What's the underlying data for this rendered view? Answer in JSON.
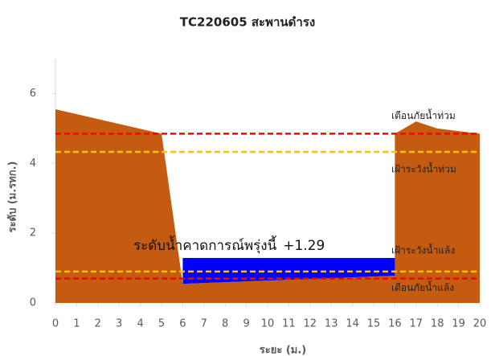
{
  "chart_data": {
    "type": "area",
    "title": "TC220605 สะพานดำรง",
    "xlabel": "ระยะ (ม.)",
    "ylabel": "ระดับ (ม.รทก.)",
    "xlim": [
      0,
      20
    ],
    "ylim": [
      0,
      7
    ],
    "xticks": [
      0,
      1,
      2,
      3,
      4,
      5,
      6,
      7,
      8,
      9,
      10,
      11,
      12,
      13,
      14,
      15,
      16,
      17,
      18,
      19,
      20
    ],
    "yticks": [
      0,
      2,
      4,
      6
    ],
    "ground": {
      "color": "#c55a11",
      "x": [
        0,
        5,
        6,
        16,
        16,
        17,
        18,
        20
      ],
      "values": [
        5.55,
        4.85,
        0.55,
        0.78,
        4.85,
        5.2,
        5.0,
        4.85
      ]
    },
    "water": {
      "label": "ระดับน้ำคาดการณ์พรุ่งนี้",
      "color": "#0000ff",
      "x": [
        6,
        16
      ],
      "value": 1.29,
      "value_label": "+1.29"
    },
    "thresholds": [
      {
        "label": "เตือนภัยน้ำท่วม",
        "value": 4.85,
        "color": "#ff0000"
      },
      {
        "label": "เฝ้าระวังน้ำท่วม",
        "value": 4.33,
        "color": "#ffc000"
      },
      {
        "label": "เฝ้าระวังน้ำแล้ง",
        "value": 0.9,
        "color": "#ffc000"
      },
      {
        "label": "เตือนภัยน้ำแล้ง",
        "value": 0.7,
        "color": "#ff0000"
      }
    ]
  }
}
